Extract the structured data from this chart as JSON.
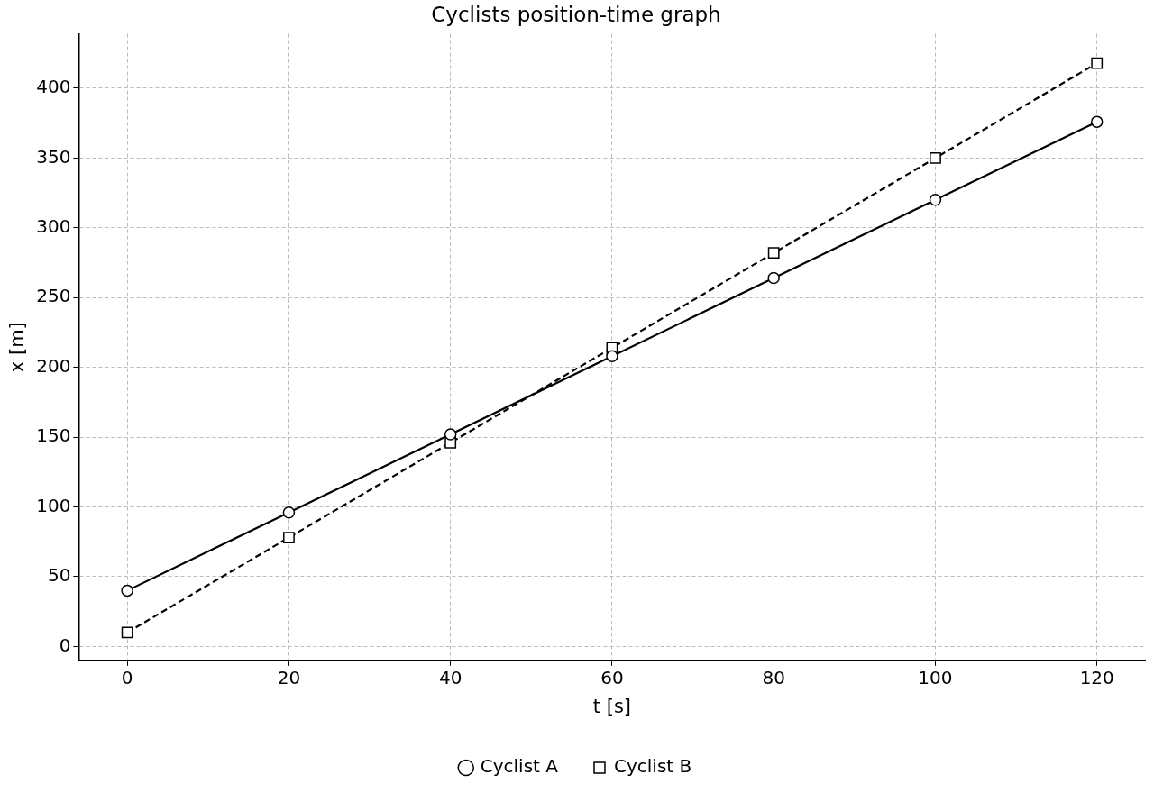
{
  "chart_data": {
    "type": "line",
    "title": "Cyclists position-time graph",
    "xlabel": "t [s]",
    "ylabel": "x [m]",
    "x": [
      0,
      20,
      40,
      60,
      80,
      100,
      120
    ],
    "series": [
      {
        "name": "Cyclist A",
        "color": "#000000",
        "values": [
          40,
          96,
          152,
          208,
          264,
          320,
          376
        ],
        "marker": "circle",
        "line_style": "solid"
      },
      {
        "name": "Cyclist B",
        "color": "#000000",
        "values": [
          10,
          78,
          146,
          214,
          282,
          350,
          418
        ],
        "marker": "square",
        "line_style": "dashed"
      }
    ],
    "xlim": [
      -6,
      126
    ],
    "ylim": [
      -10,
      439
    ],
    "xticks": [
      0,
      20,
      40,
      60,
      80,
      100,
      120
    ],
    "yticks": [
      0,
      50,
      100,
      150,
      200,
      250,
      300,
      350,
      400
    ],
    "grid": true,
    "legend": "bottom"
  }
}
